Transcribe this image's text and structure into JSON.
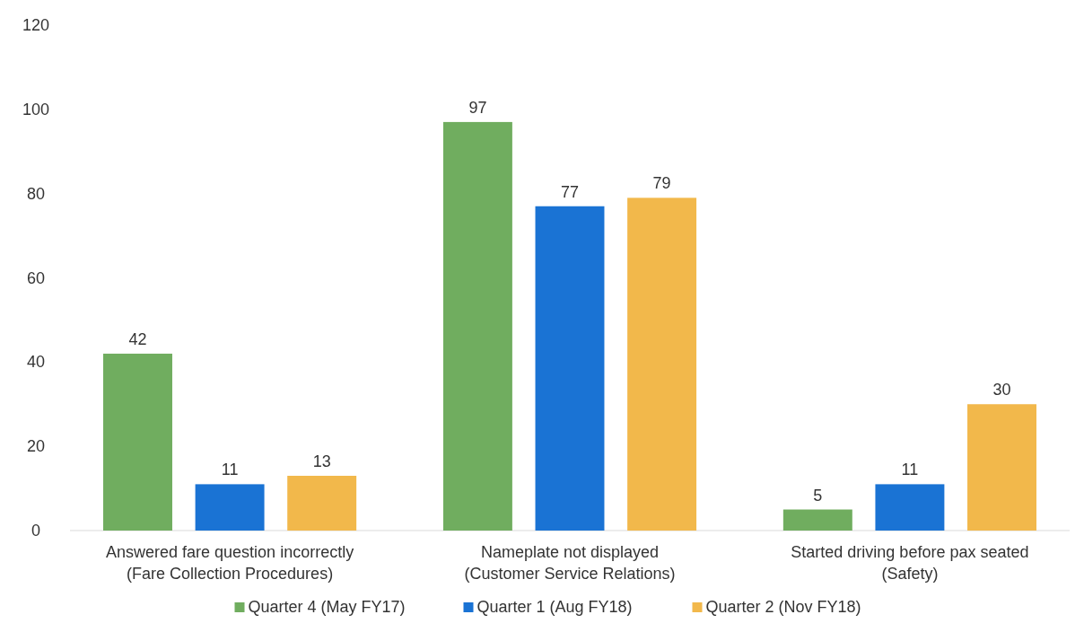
{
  "chart_data": {
    "type": "bar",
    "categories": [
      "Answered fare question incorrectly\n(Fare Collection Procedures)",
      "Nameplate not displayed\n(Customer Service Relations)",
      "Started driving before pax seated\n(Safety)"
    ],
    "series": [
      {
        "name": "Quarter 4 (May FY17)",
        "color": "#70ad5f",
        "values": [
          42,
          97,
          5
        ]
      },
      {
        "name": "Quarter 1 (Aug FY18)",
        "color": "#1a73d4",
        "values": [
          11,
          77,
          11
        ]
      },
      {
        "name": "Quarter 2 (Nov FY18)",
        "color": "#f2b84b",
        "values": [
          13,
          79,
          30
        ]
      }
    ],
    "ylim": [
      0,
      120
    ],
    "yticks": [
      0,
      20,
      40,
      60,
      80,
      100,
      120
    ],
    "data_labels": true,
    "legend": "bottom",
    "grid": false
  }
}
